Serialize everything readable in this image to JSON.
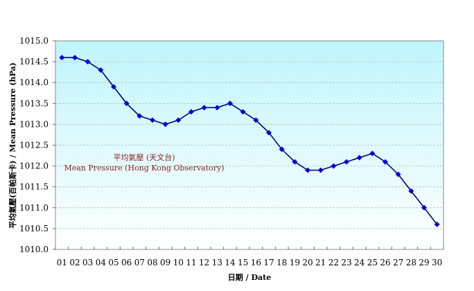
{
  "chart_data": {
    "type": "line",
    "title": "",
    "xlabel": "日期 / Date",
    "ylabel": "平均氣壓(百帕斯卡) / Mean Pressure (hPa)",
    "ylim": [
      1010.0,
      1015.0
    ],
    "yticks": [
      "1010.0",
      "1010.5",
      "1011.0",
      "1011.5",
      "1012.0",
      "1012.5",
      "1013.0",
      "1013.5",
      "1014.0",
      "1014.5",
      "1015.0"
    ],
    "grid": true,
    "legend": "none",
    "categories": [
      "01",
      "02",
      "03",
      "04",
      "05",
      "06",
      "07",
      "08",
      "09",
      "10",
      "11",
      "12",
      "13",
      "14",
      "15",
      "16",
      "17",
      "18",
      "19",
      "20",
      "21",
      "22",
      "23",
      "24",
      "25",
      "26",
      "27",
      "28",
      "29",
      "30"
    ],
    "series": [
      {
        "name": "Mean Pressure (Hong Kong Observatory)",
        "name_zh": "平均氣壓 (天文台)",
        "color": "#0000cc",
        "values": [
          1014.6,
          1014.6,
          1014.5,
          1014.3,
          1013.9,
          1013.5,
          1013.2,
          1013.1,
          1013.0,
          1013.1,
          1013.3,
          1013.4,
          1013.4,
          1013.5,
          1013.3,
          1013.1,
          1012.8,
          1012.4,
          1012.1,
          1011.9,
          1011.9,
          1012.0,
          1012.1,
          1012.2,
          1012.3,
          1012.1,
          1011.8,
          1011.4,
          1011.0,
          1010.6
        ]
      }
    ],
    "annotations": [
      {
        "text": "平均氣壓 (天文台)",
        "color": "#8b1a1a"
      },
      {
        "text": "Mean Pressure (Hong Kong Observatory)",
        "color": "#8b1a1a"
      }
    ],
    "colors": {
      "plot_bg_top": "#bff5fb",
      "plot_bg_bottom": "#ffffff",
      "line": "#000080",
      "marker": "#0000dd",
      "gridline": "#a8c0c8"
    }
  }
}
